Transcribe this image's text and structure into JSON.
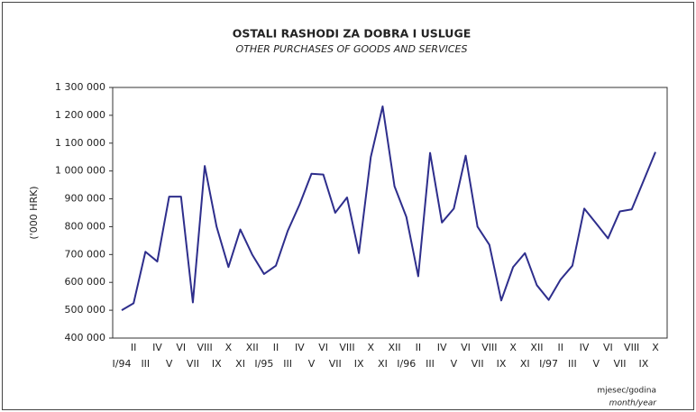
{
  "chart_data": {
    "type": "line",
    "title": "OSTALI RASHODI ZA DOBRA I USLUGE",
    "subtitle": "OTHER PURCHASES OF GOODS AND SERVICES",
    "y_label": "('000 HRK)",
    "x_label": "mjesec/godina",
    "x_label_en": "month/year",
    "categories": [
      "I/94",
      "II",
      "III",
      "IV",
      "V",
      "VI",
      "VII",
      "VIII",
      "IX",
      "X",
      "XI",
      "XII",
      "I/95",
      "II",
      "III",
      "IV",
      "V",
      "VI",
      "VII",
      "VIII",
      "IX",
      "X",
      "XI",
      "XII",
      "I/96",
      "II",
      "III",
      "IV",
      "V",
      "VI",
      "VII",
      "VIII",
      "IX",
      "X",
      "XI",
      "XII",
      "I/97",
      "II",
      "III",
      "IV",
      "V",
      "VI",
      "VII",
      "VIII",
      "IX",
      "X"
    ],
    "series": [
      {
        "name": "Ostali rashodi",
        "color": "#2e2e8c",
        "values": [
          500000,
          525000,
          710000,
          675000,
          908000,
          908000,
          528000,
          1018000,
          800000,
          655000,
          790000,
          700000,
          630000,
          660000,
          785000,
          880000,
          990000,
          987000,
          850000,
          905000,
          705000,
          1050000,
          1232000,
          945000,
          835000,
          622000,
          1065000,
          815000,
          865000,
          1055000,
          800000,
          735000,
          535000,
          655000,
          705000,
          590000,
          537000,
          610000,
          660000,
          865000,
          812000,
          758000,
          855000,
          862000,
          965000,
          1068000
        ]
      }
    ],
    "ylim": [
      400000,
      1300000
    ],
    "yticks": [
      {
        "value": 400000,
        "label": "400 000"
      },
      {
        "value": 500000,
        "label": "500 000"
      },
      {
        "value": 600000,
        "label": "600 000"
      },
      {
        "value": 700000,
        "label": "700 000"
      },
      {
        "value": 800000,
        "label": "800 000"
      },
      {
        "value": 900000,
        "label": "900 000"
      },
      {
        "value": 1000000,
        "label": "1 000 000"
      },
      {
        "value": 1100000,
        "label": "1 100 000"
      },
      {
        "value": 1200000,
        "label": "1 200 000"
      },
      {
        "value": 1300000,
        "label": "1 300 000"
      }
    ]
  }
}
